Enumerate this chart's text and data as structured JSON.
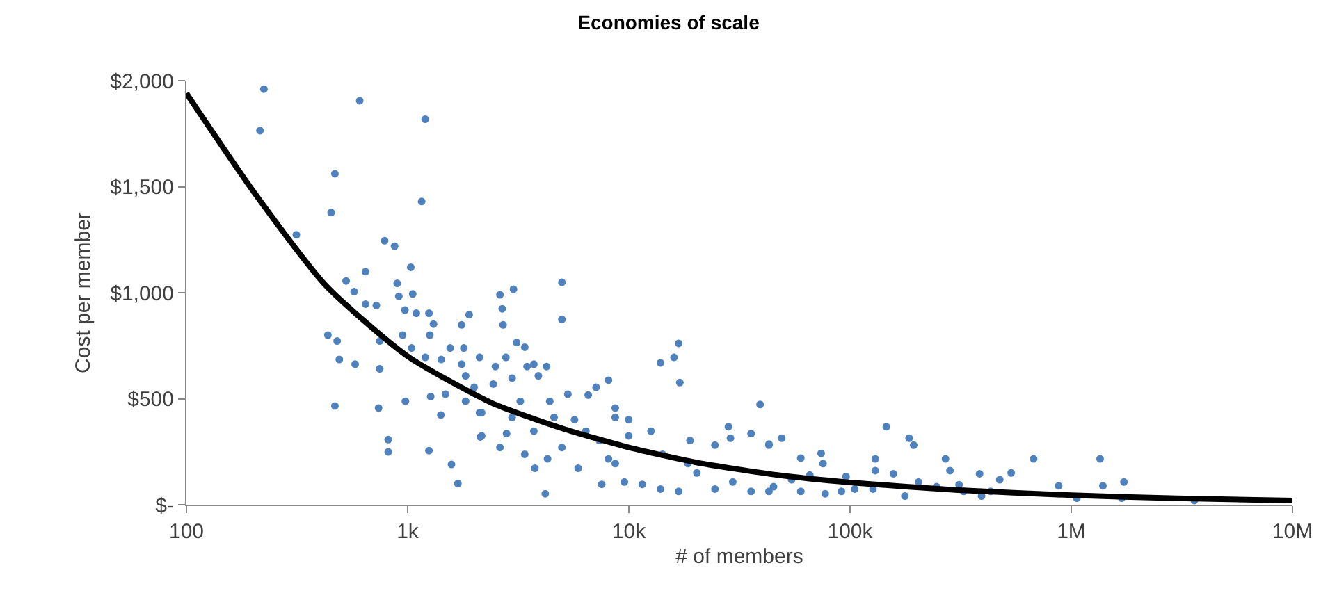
{
  "chart_data": {
    "type": "scatter",
    "title": "Economies of scale",
    "xlabel": "# of members",
    "ylabel": "Cost per member",
    "log": "x",
    "marker": "circle",
    "xlim": [
      100,
      10000000
    ],
    "xticks": [
      100,
      {
        "value": 1000,
        "label": "1k"
      },
      {
        "value": 10000,
        "label": "10k"
      },
      {
        "value": 100000,
        "label": "100k"
      },
      {
        "value": 1000000,
        "label": "1M"
      },
      {
        "value": 10000000,
        "label": "10M"
      }
    ],
    "ylim": [
      0,
      2000
    ],
    "yticks": [
      {
        "value": 0,
        "label": "$-"
      },
      {
        "value": 500,
        "label": "$500"
      },
      {
        "value": 1000,
        "label": "$1,000"
      },
      {
        "value": 1500,
        "label": "$1,500"
      },
      {
        "value": 2000,
        "label": "$2,000"
      }
    ],
    "series": [
      {
        "color": "#4f81bd",
        "x": [
          224,
          215,
          607,
          1200,
          469,
          451,
          1157,
          314,
          787,
          873,
          645,
          1033,
          527,
          573,
          897,
          1054,
          912,
          645,
          722,
          972,
          1094,
          1248,
          1309,
          1897,
          1753,
          436,
          480,
          748,
          949,
          1259,
          1042,
          1556,
          1795,
          1202,
          491,
          579,
          1418,
          1753,
          2114,
          748,
          1828,
          1997,
          1828,
          2114,
          469,
          739,
          977,
          1271,
          1483,
          1413,
          2132,
          817,
          817,
          1248,
          1578,
          1687,
          4980,
          4980,
          2614,
          3010,
          2676,
          2700,
          3110,
          3383,
          2780,
          2494,
          3467,
          3720,
          4244,
          3899,
          2965,
          2437,
          8090,
          13900,
          16000,
          16800,
          17000,
          5300,
          6550,
          7110,
          4390,
          3230,
          2965,
          4590,
          5680,
          8680,
          9980,
          2160,
          2160,
          2800,
          3720,
          2614,
          3383,
          4290,
          4980,
          6390,
          7360,
          8090,
          3760,
          5900,
          4190,
          12600,
          9980,
          8680,
          7540,
          9550,
          11500,
          13900,
          16800,
          14200,
          18900,
          18500,
          24500,
          28200,
          28800,
          35700,
          39200,
          43000,
          29500,
          35700,
          43000,
          24500,
          20300,
          8680,
          146000,
          185000,
          194000,
          49100,
          43000,
          59900,
          74000,
          75500,
          130000,
          130000,
          270000,
          283000,
          676000,
          1350000,
          1390000,
          1730000,
          877000,
          535000,
          475000,
          385000,
          157000,
          95900,
          65800,
          54400,
          45100,
          59900,
          91400,
          105000,
          204000,
          177000,
          246000,
          311000,
          432000,
          393000,
          1060000,
          1690000,
          3600000,
          77200,
          127000,
          326000
        ],
        "values": [
          1960,
          1764,
          1905,
          1818,
          1561,
          1378,
          1430,
          1273,
          1245,
          1219,
          1099,
          1120,
          1055,
          1005,
          1044,
          994,
          983,
          946,
          940,
          918,
          903,
          903,
          852,
          896,
          848,
          800,
          772,
          772,
          800,
          800,
          739,
          739,
          739,
          695,
          685,
          663,
          685,
          663,
          695,
          641,
          608,
          554,
          488,
          434,
          466,
          456,
          488,
          510,
          521,
          423,
          320,
          307,
          249,
          255,
          190,
          100,
          1049,
          874,
          990,
          1016,
          924,
          848,
          765,
          743,
          695,
          652,
          652,
          663,
          652,
          608,
          597,
          569,
          587,
          669,
          695,
          761,
          576,
          521,
          517,
          554,
          488,
          488,
          412,
          412,
          401,
          412,
          401,
          434,
          325,
          336,
          347,
          270,
          238,
          216,
          270,
          347,
          303,
          216,
          172,
          172,
          52,
          347,
          325,
          194,
          96,
          107,
          96,
          74,
          63,
          238,
          303,
          194,
          281,
          368,
          314,
          336,
          473,
          281,
          107,
          63,
          63,
          74,
          150,
          456,
          368,
          314,
          281,
          314,
          286,
          220,
          242,
          194,
          216,
          161,
          216,
          161,
          216,
          216,
          89,
          107,
          89,
          150,
          118,
          146,
          146,
          133,
          140,
          118,
          85,
          63,
          63,
          74,
          107,
          41,
          85,
          94,
          63,
          41,
          31,
          31,
          20,
          52,
          74,
          63
        ]
      },
      {
        "type": "line",
        "color": "#000000",
        "marker": "none",
        "line_style": "solid",
        "x": [
          100,
          200,
          430,
          1000,
          2400,
          5000,
          10000,
          20000,
          47000,
          100000,
          300000,
          1000000,
          3000000,
          10000000
        ],
        "values": [
          1940,
          1480,
          1030,
          700,
          480,
          360,
          270,
          200,
          140,
          105,
          70,
          45,
          30,
          20
        ]
      }
    ]
  }
}
